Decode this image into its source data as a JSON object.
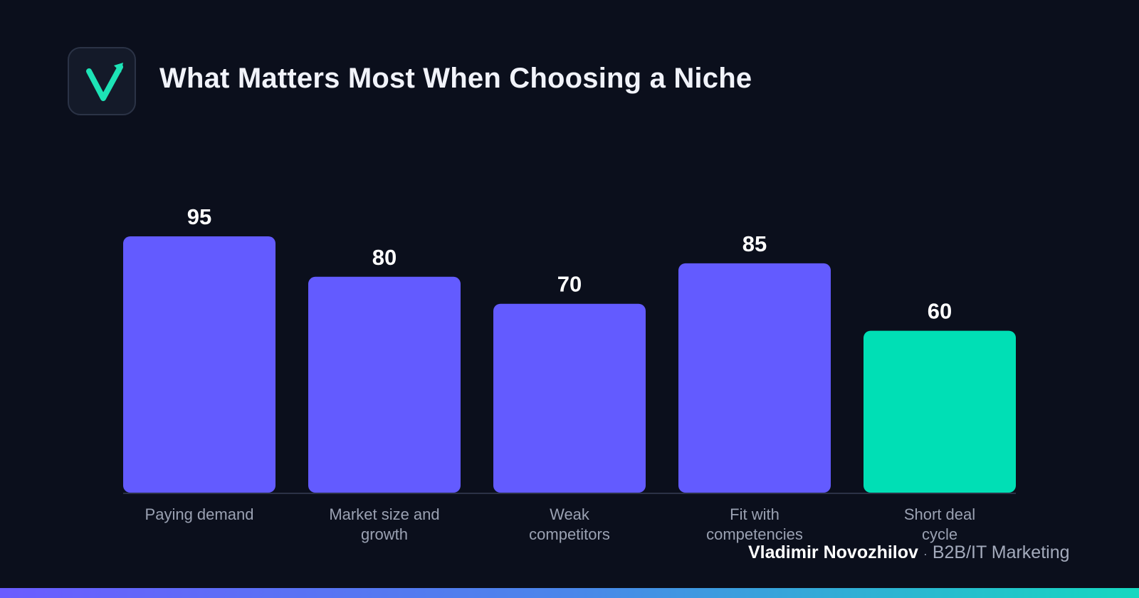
{
  "header": {
    "title": "What Matters Most When Choosing a Niche",
    "logo_icon": "checkmark-arrow-logo-icon"
  },
  "colors": {
    "background": "#0b0f1c",
    "bar_primary": "#635bff",
    "bar_highlight": "#00dfb5",
    "axis_line": "#2c3246",
    "value_label": "#ffffff",
    "category_label": "#9aa1b2"
  },
  "chart_data": {
    "type": "bar",
    "title": "What Matters Most When Choosing a Niche",
    "categories": [
      "Paying demand",
      "Market size and growth",
      "Weak competitors",
      "Fit with competencies",
      "Short deal cycle"
    ],
    "category_lines": [
      [
        "Paying demand"
      ],
      [
        "Market size and",
        "growth"
      ],
      [
        "Weak",
        "competitors"
      ],
      [
        "Fit with",
        "competencies"
      ],
      [
        "Short deal",
        "cycle"
      ]
    ],
    "values": [
      95,
      80,
      70,
      85,
      60
    ],
    "highlight_index": 4,
    "ylim": [
      0,
      100
    ],
    "grid": false,
    "xlabel": "",
    "ylabel": ""
  },
  "footer": {
    "author": "Vladimir Novozhilov",
    "separator": "·",
    "role": "B2B/IT Marketing"
  }
}
